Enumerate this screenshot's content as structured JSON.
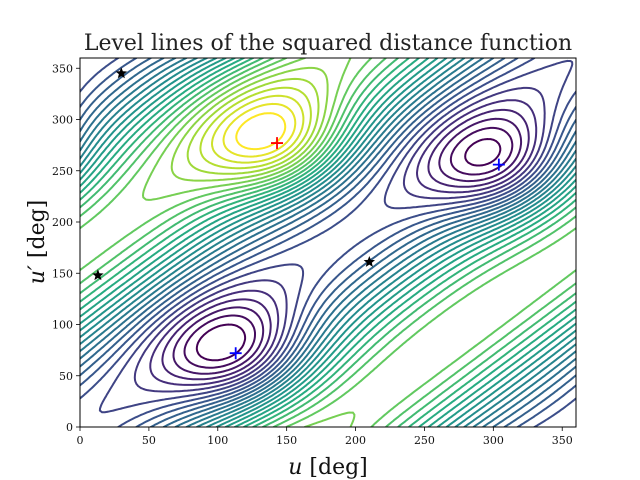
{
  "chart_data": {
    "type": "contour",
    "title": "Level lines of the squared distance function",
    "xlabel": "u [deg]",
    "ylabel": "u′ [deg]",
    "xlim": [
      0,
      360
    ],
    "ylim": [
      0,
      360
    ],
    "x_ticks": [
      0,
      50,
      100,
      150,
      200,
      250,
      300,
      350
    ],
    "y_ticks": [
      0,
      50,
      100,
      150,
      200,
      250,
      300,
      350
    ],
    "grid": false,
    "colormap": "viridis",
    "minima": [
      {
        "x": 113,
        "y": 72
      },
      {
        "x": 304,
        "y": 256
      }
    ],
    "maximum": {
      "x": 143,
      "y": 277
    },
    "saddles": [
      {
        "x": 30,
        "y": 345
      },
      {
        "x": 13,
        "y": 148
      },
      {
        "x": 210,
        "y": 161
      }
    ],
    "marker_colors": {
      "minimum": "#0000ff",
      "maximum": "#ff0000",
      "saddle": "#000000"
    }
  }
}
